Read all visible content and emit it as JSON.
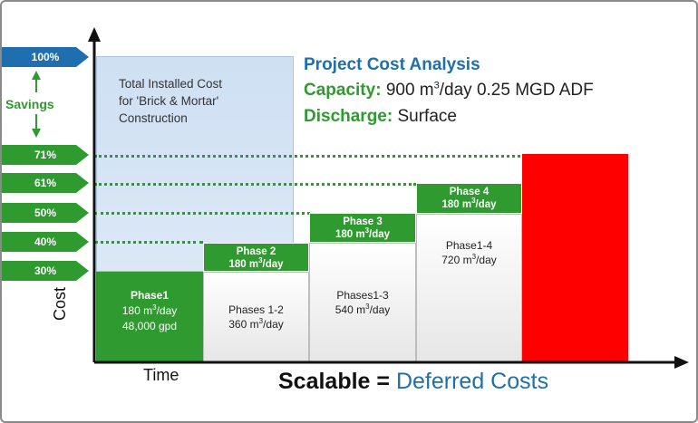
{
  "title": "Project Cost Analysis",
  "capacity": {
    "label": "Capacity:",
    "value_a": "900 m",
    "sup": "3",
    "value_b": "/day 0.25 MGD ADF"
  },
  "discharge": {
    "label": "Discharge:",
    "value": "Surface"
  },
  "y_axis_label": "Cost",
  "x_axis_label": "Time",
  "tagline": {
    "lead": "Scalable =",
    "accent": "Deferred Costs"
  },
  "savings_label": "Savings",
  "percent_markers": [
    "100%",
    "71%",
    "61%",
    "50%",
    "40%",
    "30%"
  ],
  "brick_box": {
    "line1": "Total Installed Cost",
    "line2": "for 'Brick & Mortar'",
    "line3": "Construction"
  },
  "phase1": {
    "name": "Phase1",
    "rate_a": "180 m",
    "rate_b": "/day",
    "gpd": "48,000 gpd"
  },
  "phases": [
    {
      "header": "Phase 2",
      "header_rate_a": "180 m",
      "header_rate_b": "/day",
      "body_line1": "Phases 1-2",
      "body_line2_a": "360 m",
      "body_line2_b": "/day"
    },
    {
      "header": "Phase 3",
      "header_rate_a": "180 m",
      "header_rate_b": "/day",
      "body_line1": "Phases1-3",
      "body_line2_a": "540 m",
      "body_line2_b": "/day"
    },
    {
      "header": "Phase 4",
      "header_rate_a": "180 m",
      "header_rate_b": "/day",
      "body_line1": "Phase1-4",
      "body_line2_a": "720 m",
      "body_line2_b": "/day"
    }
  ],
  "sup3": "3",
  "colors": {
    "green": "#2f9a2f",
    "blue": "#1f6fae",
    "red": "#ff0000",
    "light_blue": "#cfe0f3"
  }
}
